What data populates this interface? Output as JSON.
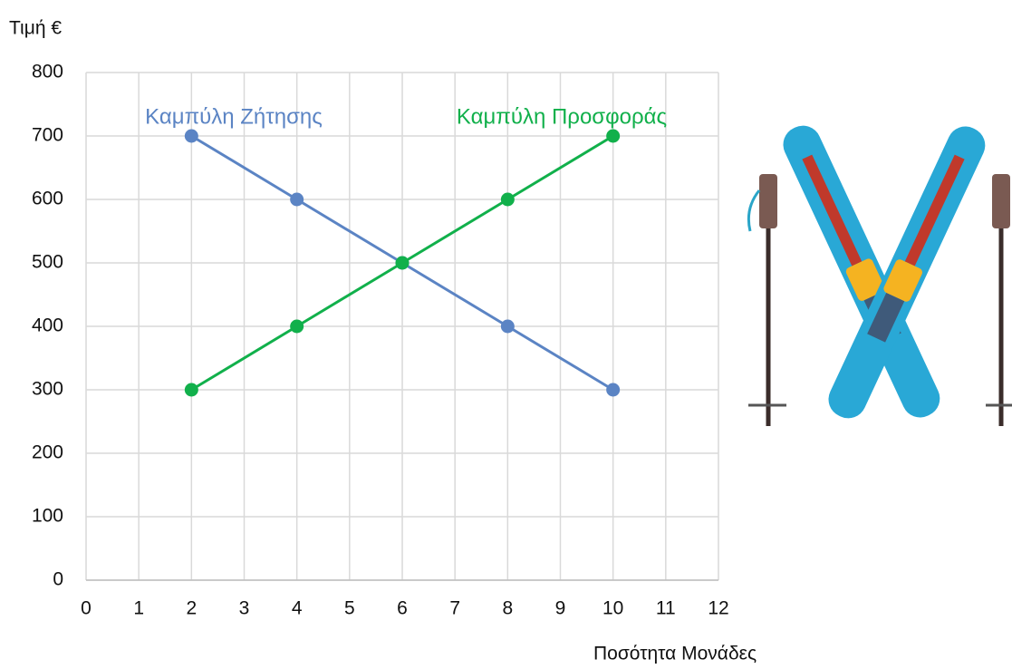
{
  "chart_data": {
    "type": "line",
    "y_label": "Τιμή €",
    "x_label": "Ποσότητα Μονάδες",
    "xlim": [
      0,
      12
    ],
    "xticks": [
      0,
      1,
      2,
      3,
      4,
      5,
      6,
      7,
      8,
      9,
      10,
      11,
      12
    ],
    "ylim": [
      0,
      800
    ],
    "yticks": [
      0,
      100,
      200,
      300,
      400,
      500,
      600,
      700,
      800
    ],
    "grid": true,
    "series": [
      {
        "name": "Καμπύλη Ζήτησης",
        "color": "#5b84c4",
        "x": [
          2,
          4,
          6,
          8,
          10
        ],
        "values": [
          700,
          600,
          500,
          400,
          300
        ]
      },
      {
        "name": "Καμπύλη Προσφοράς",
        "color": "#11b04b",
        "x": [
          2,
          4,
          6,
          8,
          10
        ],
        "values": [
          300,
          400,
          500,
          600,
          700
        ]
      }
    ]
  }
}
